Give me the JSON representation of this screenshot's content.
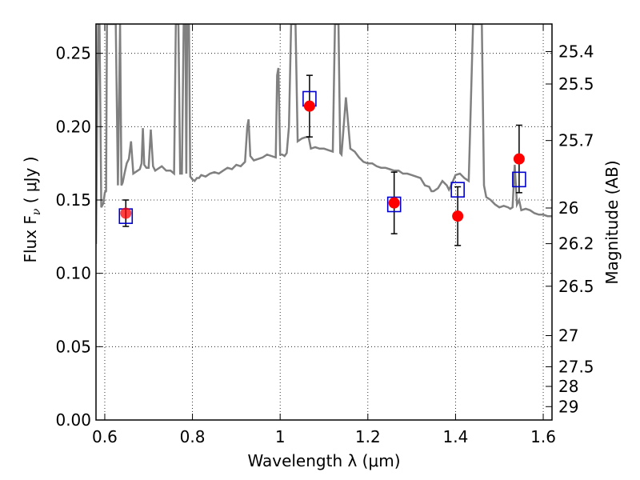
{
  "chart_data": {
    "type": "scatter",
    "xlabel": "Wavelength  λ (μm)",
    "ylabel": "Flux  F",
    "ylabel_sub": "ν",
    "ylabel_unit": "  ( μJy )",
    "ylabel_right": "Magnitude (AB)",
    "xlim": [
      0.58,
      1.62
    ],
    "ylim": [
      0.0,
      0.27
    ],
    "grid": true,
    "x_ticks": [
      {
        "value": 0.6,
        "label": "0.6"
      },
      {
        "value": 0.8,
        "label": "0.8"
      },
      {
        "value": 1.0,
        "label": "1"
      },
      {
        "value": 1.2,
        "label": "1.2"
      },
      {
        "value": 1.4,
        "label": "1.4"
      },
      {
        "value": 1.6,
        "label": "1.6"
      }
    ],
    "y_ticks": [
      {
        "value": 0.0,
        "label": "0.00"
      },
      {
        "value": 0.05,
        "label": "0.05"
      },
      {
        "value": 0.1,
        "label": "0.10"
      },
      {
        "value": 0.15,
        "label": "0.15"
      },
      {
        "value": 0.2,
        "label": "0.20"
      },
      {
        "value": 0.25,
        "label": "0.25"
      }
    ],
    "right_ticks": [
      {
        "value": 25.4,
        "label": "25.4"
      },
      {
        "value": 25.5,
        "label": "25.5"
      },
      {
        "value": 25.7,
        "label": "25.7"
      },
      {
        "value": 26,
        "label": "26"
      },
      {
        "value": 26.2,
        "label": "26.2"
      },
      {
        "value": 26.5,
        "label": "26.5"
      },
      {
        "value": 27,
        "label": "27"
      },
      {
        "value": 27.5,
        "label": "27.5"
      },
      {
        "value": 28,
        "label": "28"
      },
      {
        "value": 29,
        "label": "29"
      }
    ],
    "model_spectrum": {
      "color": "#808080",
      "x": [
        0.58,
        0.585,
        0.588,
        0.592,
        0.597,
        0.6,
        0.603,
        0.605,
        0.607,
        0.609,
        0.612,
        0.615,
        0.62,
        0.625,
        0.63,
        0.635,
        0.638,
        0.641,
        0.645,
        0.65,
        0.655,
        0.66,
        0.665,
        0.67,
        0.675,
        0.68,
        0.684,
        0.687,
        0.69,
        0.695,
        0.7,
        0.705,
        0.71,
        0.715,
        0.72,
        0.73,
        0.74,
        0.75,
        0.758,
        0.762,
        0.764,
        0.766,
        0.768,
        0.772,
        0.776,
        0.78,
        0.782,
        0.784,
        0.786,
        0.788,
        0.79,
        0.792,
        0.795,
        0.8,
        0.805,
        0.81,
        0.815,
        0.82,
        0.83,
        0.84,
        0.85,
        0.86,
        0.87,
        0.88,
        0.89,
        0.9,
        0.91,
        0.92,
        0.925,
        0.928,
        0.932,
        0.94,
        0.95,
        0.96,
        0.97,
        0.98,
        0.99,
        0.993,
        0.996,
        1.0,
        1.005,
        1.01,
        1.015,
        1.02,
        1.025,
        1.03,
        1.035,
        1.04,
        1.05,
        1.06,
        1.065,
        1.07,
        1.08,
        1.09,
        1.1,
        1.11,
        1.12,
        1.125,
        1.128,
        1.13,
        1.133,
        1.137,
        1.14,
        1.15,
        1.16,
        1.17,
        1.18,
        1.19,
        1.2,
        1.21,
        1.22,
        1.23,
        1.24,
        1.25,
        1.26,
        1.27,
        1.28,
        1.29,
        1.3,
        1.31,
        1.32,
        1.33,
        1.34,
        1.345,
        1.35,
        1.36,
        1.37,
        1.38,
        1.385,
        1.39,
        1.4,
        1.41,
        1.42,
        1.43,
        1.44,
        1.45,
        1.46,
        1.465,
        1.47,
        1.48,
        1.49,
        1.5,
        1.51,
        1.52,
        1.525,
        1.53,
        1.535,
        1.54,
        1.545,
        1.55,
        1.56,
        1.57,
        1.58,
        1.59,
        1.6,
        1.61,
        1.62
      ],
      "y": [
        0.12,
        0.27,
        0.27,
        0.145,
        0.148,
        0.155,
        0.156,
        0.27,
        0.27,
        0.27,
        0.27,
        0.27,
        0.27,
        0.27,
        0.16,
        0.27,
        0.16,
        0.162,
        0.168,
        0.175,
        0.178,
        0.19,
        0.168,
        0.169,
        0.17,
        0.171,
        0.175,
        0.199,
        0.174,
        0.172,
        0.172,
        0.198,
        0.173,
        0.17,
        0.171,
        0.173,
        0.17,
        0.17,
        0.168,
        0.27,
        0.27,
        0.27,
        0.27,
        0.168,
        0.168,
        0.27,
        0.27,
        0.27,
        0.168,
        0.27,
        0.27,
        0.27,
        0.166,
        0.164,
        0.163,
        0.165,
        0.165,
        0.167,
        0.166,
        0.168,
        0.169,
        0.168,
        0.17,
        0.172,
        0.171,
        0.174,
        0.173,
        0.176,
        0.2,
        0.205,
        0.18,
        0.177,
        0.178,
        0.179,
        0.181,
        0.18,
        0.179,
        0.235,
        0.24,
        0.181,
        0.181,
        0.18,
        0.182,
        0.2,
        0.27,
        0.27,
        0.27,
        0.19,
        0.192,
        0.193,
        0.193,
        0.185,
        0.186,
        0.185,
        0.185,
        0.184,
        0.183,
        0.27,
        0.27,
        0.27,
        0.27,
        0.182,
        0.181,
        0.22,
        0.185,
        0.183,
        0.179,
        0.176,
        0.175,
        0.175,
        0.173,
        0.172,
        0.172,
        0.171,
        0.17,
        0.17,
        0.168,
        0.168,
        0.167,
        0.166,
        0.165,
        0.16,
        0.159,
        0.156,
        0.156,
        0.158,
        0.163,
        0.16,
        0.157,
        0.16,
        0.167,
        0.168,
        0.165,
        0.163,
        0.27,
        0.27,
        0.27,
        0.16,
        0.152,
        0.15,
        0.147,
        0.145,
        0.146,
        0.145,
        0.144,
        0.145,
        0.174,
        0.147,
        0.15,
        0.143,
        0.144,
        0.143,
        0.141,
        0.14,
        0.14,
        0.139,
        0.139
      ]
    },
    "series": [
      {
        "marker": "circle",
        "color": "#ff0000",
        "x": [
          0.648,
          1.067,
          1.26,
          1.405,
          1.545
        ],
        "y": [
          0.141,
          0.214,
          0.148,
          0.139,
          0.178
        ],
        "yerr": [
          0.009,
          0.021,
          0.021,
          0.02,
          0.023
        ]
      },
      {
        "marker": "open-square",
        "color": "#0000cc",
        "x": [
          0.648,
          1.067,
          1.26,
          1.405,
          1.545
        ],
        "y": [
          0.139,
          0.219,
          0.147,
          0.157,
          0.164
        ]
      }
    ]
  }
}
